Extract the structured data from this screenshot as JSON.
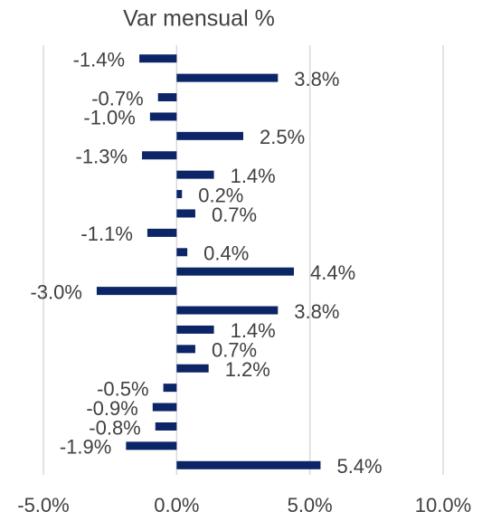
{
  "chart_data": {
    "type": "bar",
    "orientation": "horizontal",
    "title": "Var mensual %",
    "categories": [
      null,
      null,
      null,
      null,
      null,
      null,
      null,
      null,
      null,
      null,
      null,
      null,
      null,
      null,
      null,
      null,
      null,
      null,
      null,
      null,
      null,
      null
    ],
    "values": [
      -1.4,
      3.8,
      -0.7,
      -1.0,
      2.5,
      -1.3,
      1.4,
      0.2,
      0.7,
      -1.1,
      0.4,
      4.4,
      -3.0,
      3.8,
      1.4,
      0.7,
      1.2,
      -0.5,
      -0.9,
      -0.8,
      -1.9,
      5.4
    ],
    "value_labels": [
      "-1.4%",
      "3.8%",
      "-0.7%",
      "-1.0%",
      "2.5%",
      "-1.3%",
      "1.4%",
      "0.2%",
      "0.7%",
      "-1.1%",
      "0.4%",
      "4.4%",
      "-3.0%",
      "3.8%",
      "1.4%",
      "0.7%",
      "1.2%",
      "-0.5%",
      "-0.9%",
      "-0.8%",
      "-1.9%",
      "5.4%"
    ],
    "color": "#0b2566",
    "xlim": [
      -5,
      10
    ],
    "xticks": [
      {
        "value": -5,
        "label": "-5.0%"
      },
      {
        "value": 0,
        "label": "0.0%"
      },
      {
        "value": 5,
        "label": "5.0%"
      },
      {
        "value": 10,
        "label": "10.0%"
      }
    ],
    "grid": true
  }
}
